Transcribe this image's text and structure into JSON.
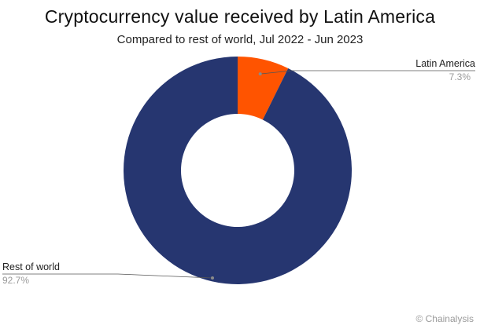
{
  "title": "Cryptocurrency value received by Latin America",
  "subtitle": "Compared to rest of world, Jul 2022 - Jun 2023",
  "credit": "© Chainalysis",
  "colors": {
    "latin_america": "#FF5400",
    "rest_of_world": "#263670",
    "leader": "#555555"
  },
  "chart_data": {
    "type": "pie",
    "variant": "donut",
    "title": "Cryptocurrency value received by Latin America",
    "subtitle": "Compared to rest of world, Jul 2022 - Jun 2023",
    "slices": [
      {
        "name": "Latin America",
        "value": 7.3,
        "label": "7.3%",
        "color": "#FF5400"
      },
      {
        "name": "Rest of world",
        "value": 92.7,
        "label": "92.7%",
        "color": "#263670"
      }
    ]
  }
}
